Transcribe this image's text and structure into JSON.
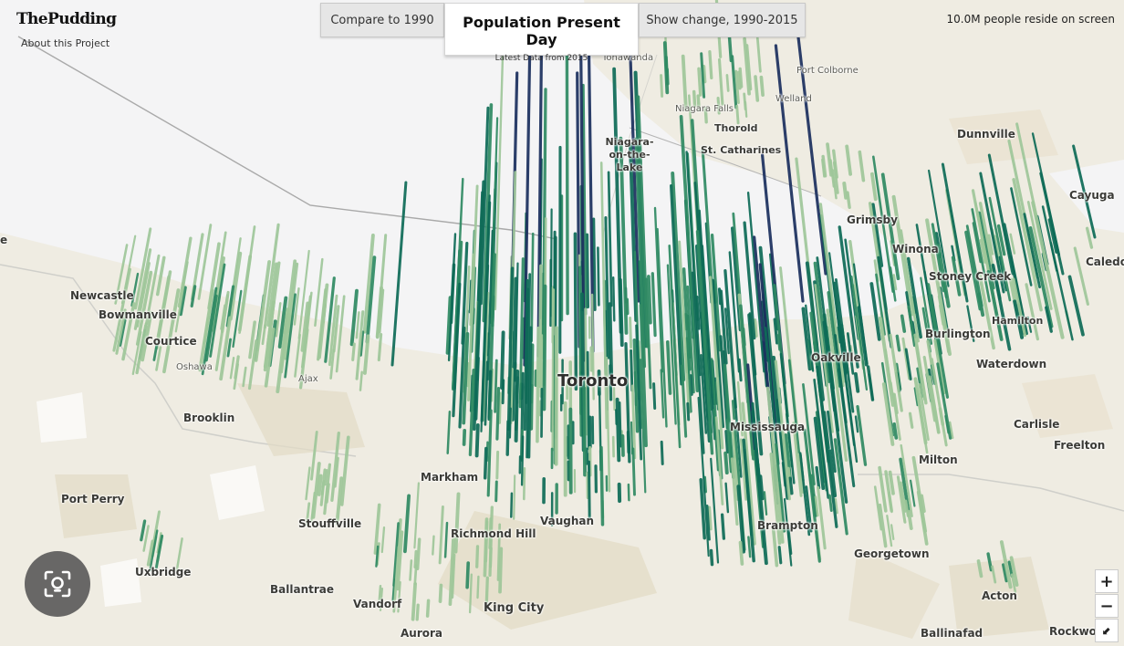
{
  "header": {
    "brand": "ThePudding",
    "about_link": "About this Project",
    "buttons": {
      "compare_1990": "Compare to 1990",
      "show_change": "Show change, 1990-2015"
    },
    "active_view": {
      "title": "Population Present Day",
      "subtitle": "Latest Data from 2015"
    },
    "population_readout": "10.0M people reside on screen"
  },
  "map": {
    "labels": {
      "tonawanda": "Tonawanda",
      "port_colborne": "Port Colborne",
      "welland": "Welland",
      "niagara_falls": "Niagara Falls",
      "thorold": "Thorold",
      "st_catharines": "St. Catharines",
      "niagara_on_the_lake": "Niagara-on-the-Lake",
      "dunnville": "Dunnville",
      "cayuga": "Cayuga",
      "grimsby": "Grimsby",
      "winona": "Winona",
      "caledonia": "Caledo",
      "stoney_creek": "Stoney Creek",
      "hamilton": "Hamilton",
      "burlington": "Burlington",
      "waterdown": "Waterdown",
      "oakville": "Oakville",
      "newcastle": "Newcastle",
      "bowmanville": "Bowmanville",
      "courtice": "Courtice",
      "oshawa": "Oshawa",
      "ajax": "Ajax",
      "toronto": "Toronto",
      "mississauga": "Mississauga",
      "carlisle": "Carlisle",
      "freelton": "Freelton",
      "milton": "Milton",
      "brooklin": "Brooklin",
      "markham": "Markham",
      "port_perry": "Port Perry",
      "stouffville": "Stouffville",
      "richmond_hill": "Richmond Hill",
      "vaughan": "Vaughan",
      "brampton": "Brampton",
      "georgetown": "Georgetown",
      "uxbridge": "Uxbridge",
      "ballantrae": "Ballantrae",
      "vandorf": "Vandorf",
      "king_city": "King City",
      "acton": "Acton",
      "aurora": "Aurora",
      "ballinafad": "Ballinafad",
      "rockwood": "Rockwo",
      "left_edge": "e"
    },
    "colors": {
      "land": "#efece2",
      "water": "#f4f4f4",
      "bar_light": "#9fc79a",
      "bar_mid": "#2f8a63",
      "bar_dark": "#0e6b57",
      "bar_navy": "#1b2f5e"
    }
  },
  "controls": {
    "zoom_in": "+",
    "zoom_out": "−",
    "compass": "⬋",
    "lens_icon": "lens-icon"
  }
}
